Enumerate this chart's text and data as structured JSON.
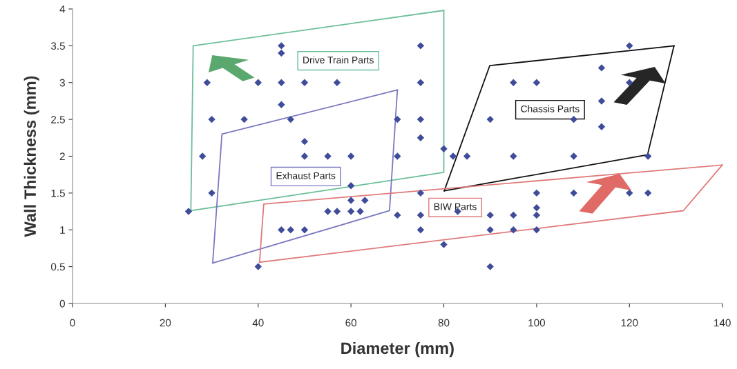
{
  "chart_data": {
    "type": "scatter",
    "xlabel": "Diameter (mm)",
    "ylabel": "Wall Thickness (mm)",
    "annotations": [
      "Drive Train Parts",
      "Exhaust Parts",
      "Chassis Parts",
      "BIW Parts"
    ],
    "xlim": [
      0,
      140
    ],
    "xticks": [
      0,
      20,
      40,
      60,
      80,
      100,
      120,
      140
    ],
    "ylim": [
      0,
      4
    ],
    "yticks": [
      0,
      0.5,
      1,
      1.5,
      2,
      2.5,
      3,
      3.5,
      4
    ],
    "grid": false,
    "marker": "diamond",
    "series": [
      {
        "type": "line",
        "marker": "none",
        "color": "#6cbf9a",
        "x": [
          25.5,
          26,
          80
        ],
        "values": [
          1.26,
          3.5,
          3.98
        ]
      },
      {
        "type": "line",
        "marker": "none",
        "color": "#6cbf9a",
        "x": [
          25.5,
          80,
          80
        ],
        "values": [
          1.26,
          1.78,
          3.98
        ]
      },
      {
        "type": "line",
        "marker": "none",
        "color": "#7a78c0",
        "x": [
          30.2,
          32.2,
          70
        ],
        "values": [
          0.55,
          2.3,
          2.9
        ]
      },
      {
        "type": "line",
        "marker": "none",
        "color": "#7a78c0",
        "x": [
          30.2,
          68.3,
          70
        ],
        "values": [
          0.55,
          1.26,
          2.9
        ]
      },
      {
        "type": "line",
        "marker": "none",
        "color": "#111111",
        "x": [
          80.1,
          89.9,
          129.6
        ],
        "values": [
          1.53,
          3.23,
          3.5
        ]
      },
      {
        "type": "line",
        "marker": "none",
        "color": "#111111",
        "x": [
          80.1,
          123.9,
          129.6
        ],
        "values": [
          1.53,
          2.02,
          3.5
        ]
      },
      {
        "type": "line",
        "marker": "none",
        "color": "#e07a7a",
        "x": [
          40.3,
          41.2,
          140
        ],
        "values": [
          0.56,
          1.35,
          1.88
        ]
      },
      {
        "type": "line",
        "marker": "none",
        "color": "#e07a7a",
        "x": [
          40.3,
          131.6,
          140
        ],
        "values": [
          0.56,
          1.26,
          1.88
        ]
      },
      {
        "color": "#3f4c9a",
        "x": [
          25,
          28,
          29,
          30,
          30,
          37,
          40,
          40,
          45,
          45,
          45,
          45,
          45,
          47,
          47,
          50,
          50,
          50,
          50,
          55,
          55,
          57,
          57,
          60,
          60,
          60,
          60,
          62,
          63,
          70,
          70,
          70,
          75,
          75,
          75,
          75,
          75,
          75,
          75,
          80,
          80,
          82,
          85,
          83,
          90,
          90,
          90,
          90,
          95,
          95,
          95,
          95,
          100,
          100,
          100,
          100,
          100,
          108,
          108,
          108,
          114,
          114,
          114,
          120,
          120,
          120,
          124,
          124
        ],
        "values": [
          1.25,
          2,
          3,
          2.5,
          1.5,
          2.5,
          3,
          0.5,
          3.5,
          3.4,
          3,
          2.7,
          1,
          2.5,
          1,
          3,
          2.2,
          2,
          1,
          2,
          1.25,
          3,
          1.25,
          2,
          1.6,
          1.4,
          1.25,
          1.25,
          1.4,
          2.5,
          2,
          1.2,
          3.5,
          3,
          2.5,
          2.25,
          1.5,
          1.2,
          1,
          2.1,
          0.8,
          2,
          2,
          1.25,
          2.5,
          1.2,
          1,
          0.5,
          3,
          2,
          1.2,
          1,
          3,
          1.5,
          1.3,
          1.2,
          1,
          2.5,
          2,
          1.5,
          3.2,
          2.75,
          2.4,
          3.5,
          3,
          1.5,
          2,
          1.5
        ]
      }
    ]
  }
}
